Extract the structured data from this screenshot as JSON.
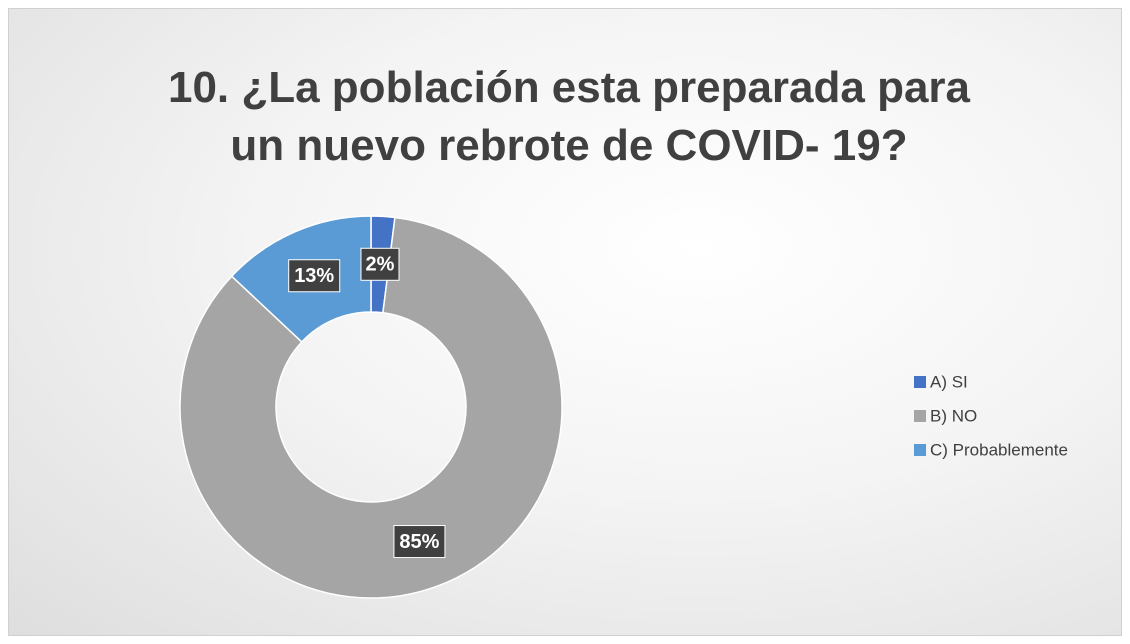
{
  "chart_data": {
    "type": "donut",
    "title": "10. ¿La población esta preparada para un nuevo rebrote de COVID- 19?",
    "categories": [
      "A)  SI",
      "B)  NO",
      "C) Probablemente"
    ],
    "values": [
      2,
      85,
      13
    ],
    "value_labels": [
      "2%",
      "85%",
      "13%"
    ],
    "colors": [
      "#4472c4",
      "#a5a5a5",
      "#5b9bd5"
    ],
    "legend": "right"
  }
}
